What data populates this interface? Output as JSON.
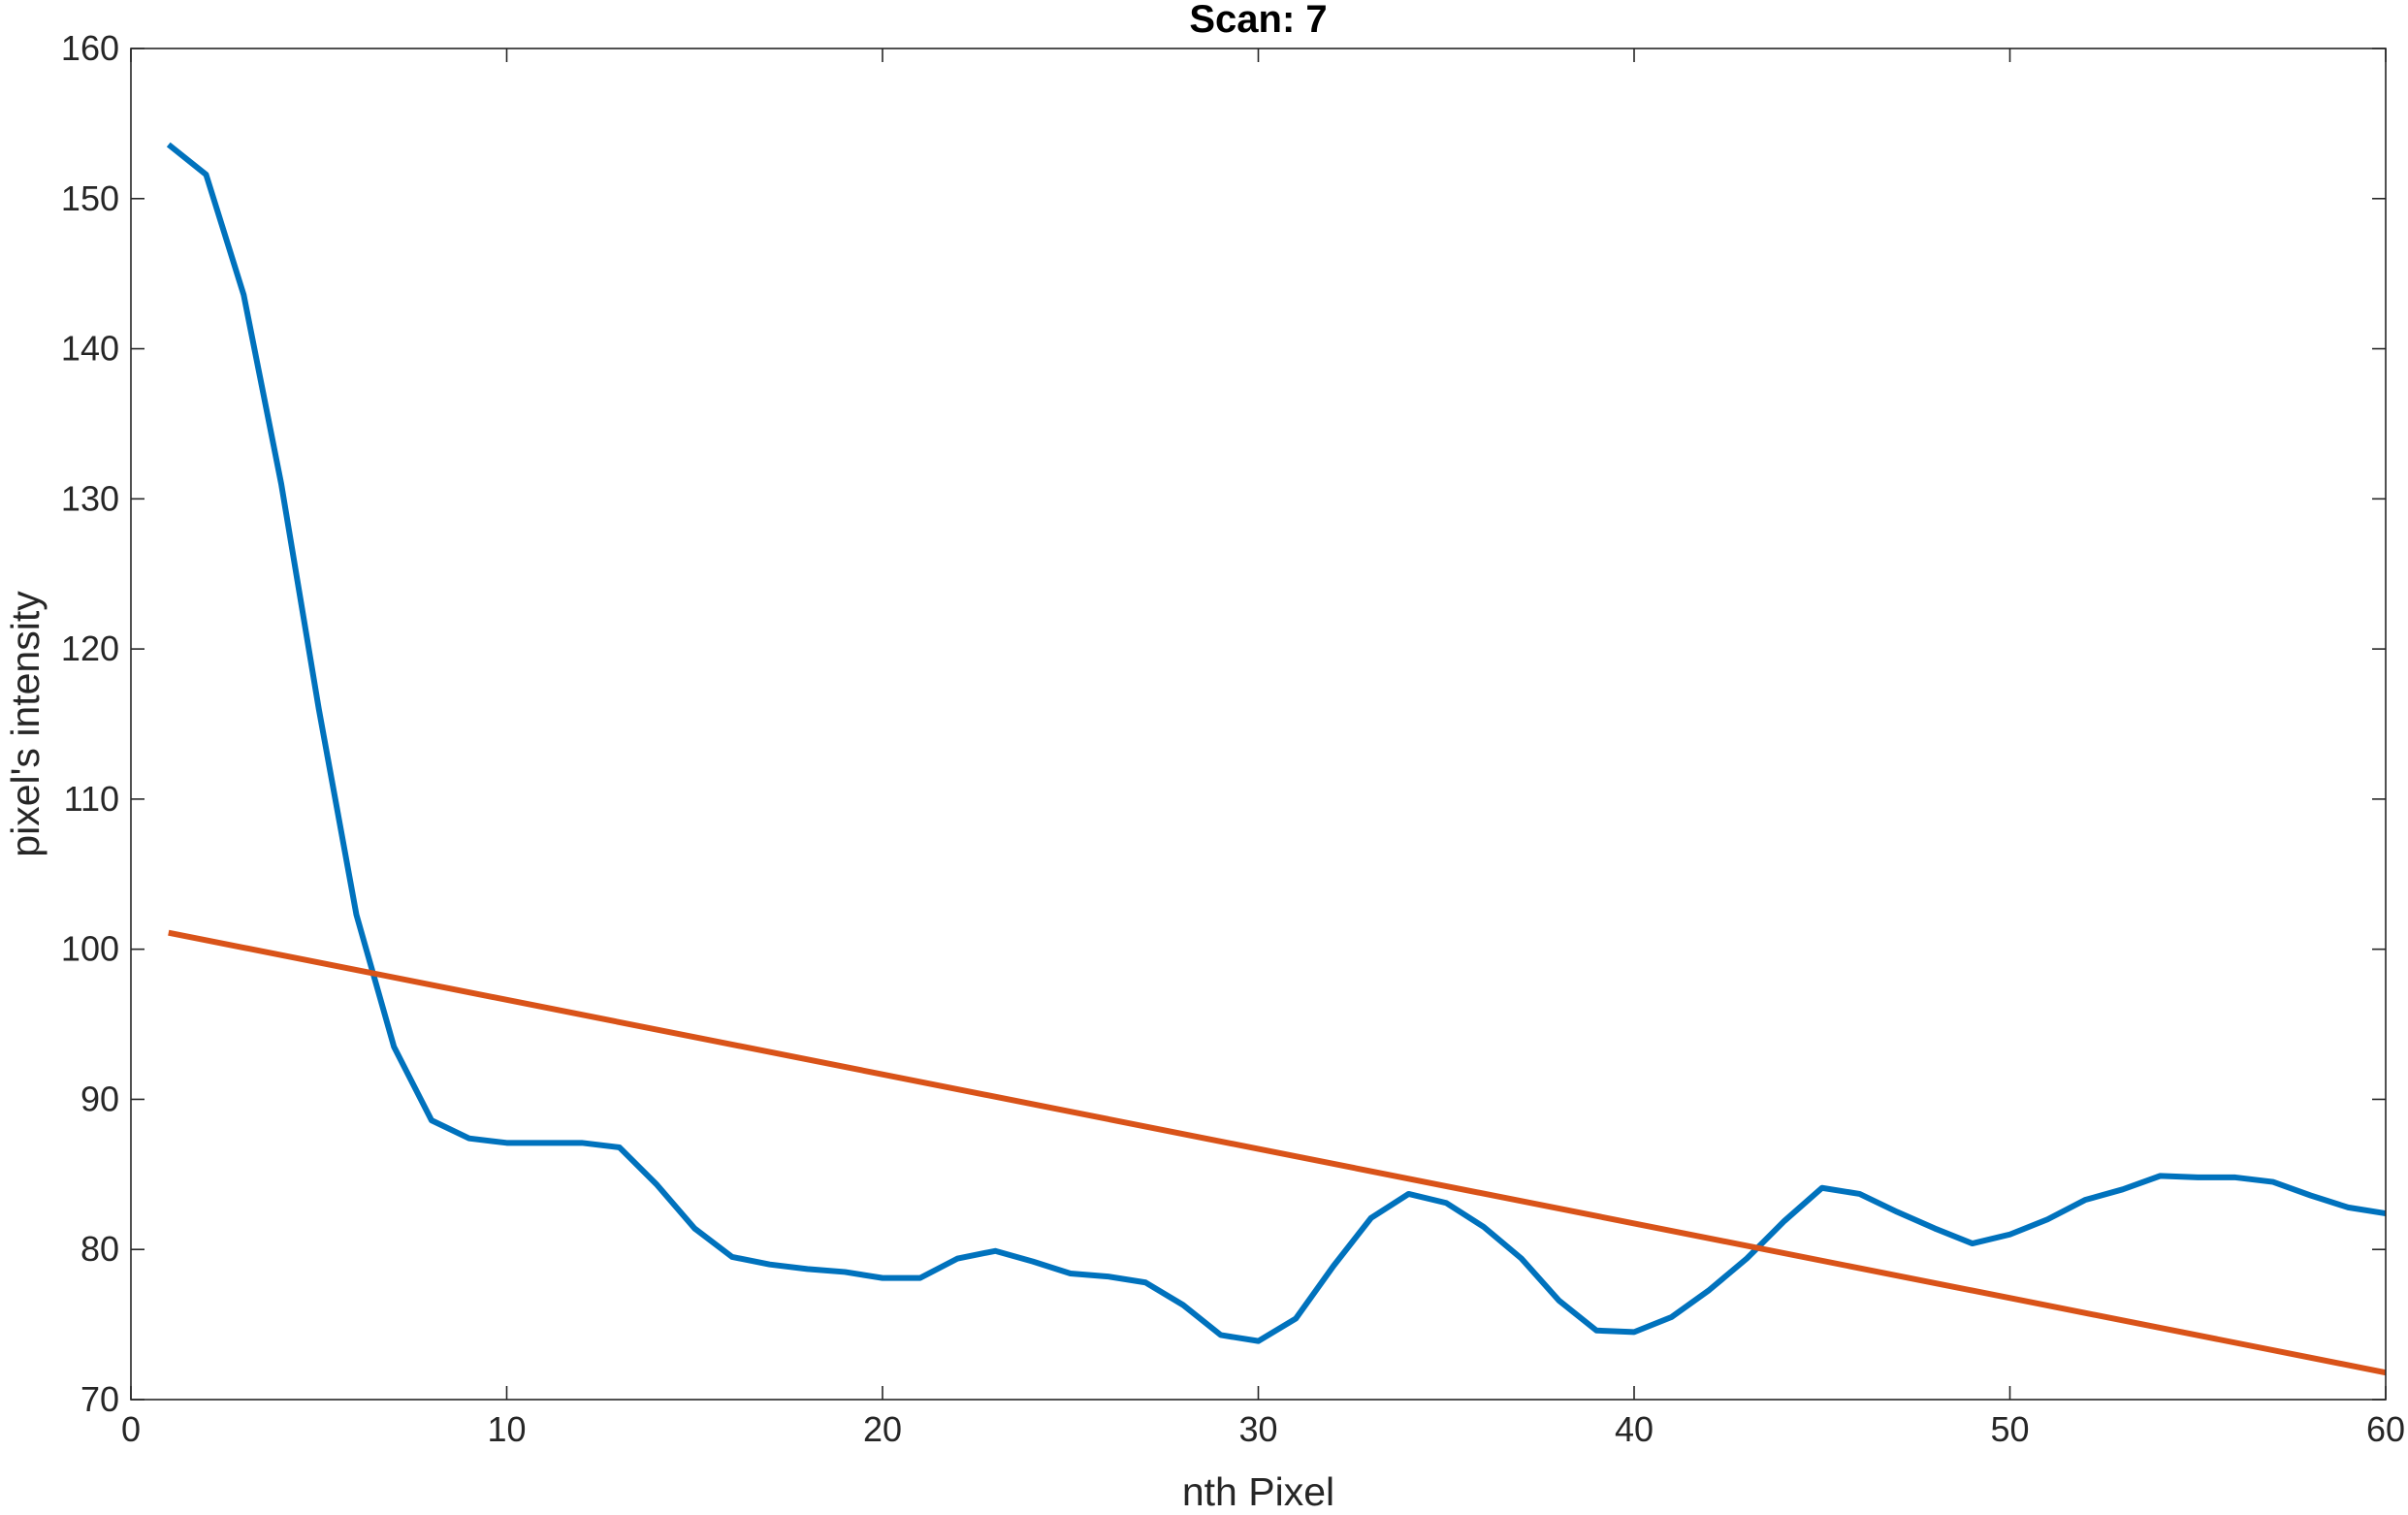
{
  "chart_data": {
    "type": "line",
    "title": "Scan: 7",
    "xlabel": "nth Pixel",
    "ylabel": "pixel's intensity",
    "xlim": [
      0,
      60
    ],
    "ylim": [
      70,
      160
    ],
    "xticks": [
      0,
      10,
      20,
      30,
      40,
      50,
      60
    ],
    "yticks": [
      70,
      80,
      90,
      100,
      110,
      120,
      130,
      140,
      150,
      160
    ],
    "grid": false,
    "box": true,
    "series": [
      {
        "color": "#0072BD",
        "x": [
          1,
          2,
          3,
          4,
          5,
          6,
          7,
          8,
          9,
          10,
          11,
          12,
          13,
          14,
          15,
          16,
          17,
          18,
          19,
          20,
          21,
          22,
          23,
          24,
          25,
          26,
          27,
          28,
          29,
          30,
          31,
          32,
          33,
          34,
          35,
          36,
          37,
          38,
          39,
          40,
          41,
          42,
          43,
          44,
          45,
          46,
          47,
          48,
          49,
          50,
          51,
          52,
          53,
          54,
          55,
          56,
          57,
          58,
          59,
          60
        ],
        "y": [
          153.6,
          151.6,
          143.6,
          131.0,
          116.0,
          102.3,
          93.5,
          88.6,
          87.4,
          87.1,
          87.1,
          87.1,
          86.8,
          84.3,
          81.4,
          79.5,
          79.0,
          78.7,
          78.5,
          78.1,
          78.1,
          79.4,
          79.9,
          79.2,
          78.4,
          78.2,
          77.8,
          76.3,
          74.3,
          73.9,
          75.4,
          78.9,
          82.1,
          83.7,
          83.1,
          81.5,
          79.4,
          76.6,
          74.6,
          74.5,
          75.5,
          77.3,
          79.4,
          81.9,
          84.1,
          83.7,
          82.5,
          81.4,
          80.4,
          81.0,
          82.0,
          83.3,
          84.0,
          84.9,
          84.8,
          84.8,
          84.5,
          83.6,
          82.8,
          82.4
        ]
      },
      {
        "color": "#D95319",
        "x": [
          1,
          60
        ],
        "y": [
          101.1,
          71.8
        ]
      }
    ]
  }
}
